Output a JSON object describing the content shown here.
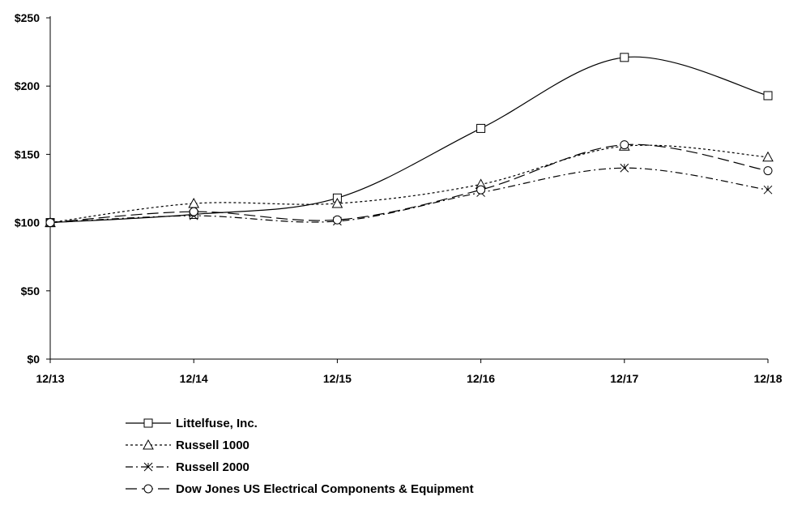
{
  "chart_data": {
    "type": "line",
    "title": "",
    "xlabel": "",
    "ylabel": "",
    "categories": [
      "12/13",
      "12/14",
      "12/15",
      "12/16",
      "12/17",
      "12/18"
    ],
    "y_ticks": [
      "$0",
      "$50",
      "$100",
      "$150",
      "$200",
      "$250"
    ],
    "ylim": [
      0,
      250
    ],
    "grid": false,
    "legend_position": "bottom-left",
    "series": [
      {
        "name": "Littelfuse, Inc.",
        "marker": "square-icon",
        "dash": "solid",
        "values": [
          100,
          106,
          118,
          169,
          221,
          193
        ]
      },
      {
        "name": "Russell 1000",
        "marker": "triangle-icon",
        "dash": "dotted",
        "values": [
          100,
          114,
          114,
          128,
          156,
          148
        ]
      },
      {
        "name": "Russell 2000",
        "marker": "asterisk-icon",
        "dash": "dash-dot",
        "values": [
          100,
          105,
          101,
          122,
          140,
          124
        ]
      },
      {
        "name": "Dow Jones US Electrical Components & Equipment",
        "marker": "circle-icon",
        "dash": "long-dash",
        "values": [
          100,
          108,
          102,
          124,
          157,
          138
        ]
      }
    ]
  }
}
